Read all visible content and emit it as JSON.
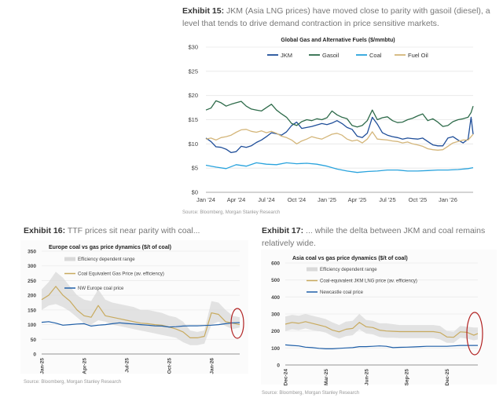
{
  "exhibits": {
    "e15": {
      "label": "Exhibit 15:",
      "text": " JKM (Asia LNG prices) have moved close to parity with gasoil (diesel), a level that tends to drive demand contraction in price sensitive markets.",
      "source": "Source: Bloomberg, Morgan Stanley Research"
    },
    "e16": {
      "label": "Exhibit 16:",
      "text": " TTF prices sit near parity with coal...",
      "source": "Source: Bloomberg, Morgan Stanley Research"
    },
    "e17": {
      "label": "Exhibit 17:",
      "text": " ... while the delta between JKM and coal remains relatively wide.",
      "source": "Source: Bloomberg, Morgan Stanley Research"
    }
  },
  "chart_data": [
    {
      "id": "exhibit15",
      "type": "line",
      "title": "Global Gas and Alternative Fuels ($/mmbtu)",
      "xlabel": "",
      "ylabel": "",
      "ylim": [
        0,
        30
      ],
      "yticks": [
        "$0",
        "$5",
        "$10",
        "$15",
        "$20",
        "$25",
        "$30"
      ],
      "ytick_values": [
        0,
        5,
        10,
        15,
        20,
        25,
        30
      ],
      "xticks": [
        "Jan '24",
        "Apr '24",
        "Jul '24",
        "Oct '24",
        "Jan '25",
        "Apr '25",
        "Jul '25",
        "Oct '25",
        "Jan '26"
      ],
      "x_unit": "months since Jan 2024",
      "xlim": [
        0,
        26.5
      ],
      "grid": true,
      "legend_position": "top-center",
      "series": [
        {
          "name": "JKM",
          "color": "#1f4e99",
          "x": [
            0,
            0.5,
            1,
            1.5,
            2,
            2.5,
            3,
            3.5,
            4,
            4.5,
            5,
            5.5,
            6,
            6.5,
            7,
            7.5,
            8,
            8.5,
            9,
            9.5,
            10,
            10.5,
            11,
            11.5,
            12,
            12.5,
            13,
            13.5,
            14,
            14.5,
            15,
            15.5,
            16,
            16.5,
            17,
            17.5,
            18,
            18.5,
            19,
            19.5,
            20,
            20.5,
            21,
            21.5,
            22,
            22.5,
            23,
            23.5,
            24,
            24.5,
            25,
            25.5,
            26,
            26.3,
            26.5
          ],
          "values": [
            11.2,
            10.5,
            9.4,
            9.3,
            8.9,
            8.2,
            8.4,
            9.5,
            9.3,
            9.6,
            10.3,
            10.8,
            11.5,
            12.3,
            12.1,
            11.8,
            12.5,
            13.8,
            14.5,
            13.2,
            13.4,
            13.6,
            13.9,
            14.2,
            14.0,
            14.3,
            14.8,
            14.2,
            13.4,
            13.0,
            11.6,
            11.3,
            12.2,
            15.5,
            14.1,
            12.3,
            11.8,
            11.5,
            11.3,
            11.0,
            11.2,
            11.1,
            11.0,
            11.2,
            10.5,
            9.8,
            9.6,
            9.6,
            11.2,
            11.5,
            10.8,
            10.2,
            11.0,
            15.5,
            12.0
          ]
        },
        {
          "name": "Gasoil",
          "color": "#2e6b4a",
          "x": [
            0,
            0.5,
            1,
            1.5,
            2,
            2.5,
            3,
            3.5,
            4,
            4.5,
            5,
            5.5,
            6,
            6.5,
            7,
            7.5,
            8,
            8.5,
            9,
            9.5,
            10,
            10.5,
            11,
            11.5,
            12,
            12.5,
            13,
            13.5,
            14,
            14.5,
            15,
            15.5,
            16,
            16.5,
            17,
            17.5,
            18,
            18.5,
            19,
            19.5,
            20,
            20.5,
            21,
            21.5,
            22,
            22.5,
            23,
            23.5,
            24,
            24.5,
            25,
            25.5,
            26,
            26.3,
            26.5
          ],
          "values": [
            17.0,
            17.4,
            18.9,
            18.5,
            17.8,
            18.2,
            18.5,
            18.8,
            17.8,
            17.2,
            17.0,
            16.8,
            17.5,
            18.2,
            17.0,
            16.2,
            15.5,
            14.2,
            13.8,
            14.6,
            15.0,
            14.8,
            15.2,
            15.0,
            15.4,
            16.8,
            16.0,
            15.5,
            15.2,
            13.8,
            13.5,
            13.8,
            14.8,
            17.0,
            15.0,
            15.4,
            15.6,
            14.8,
            14.4,
            14.5,
            15.0,
            15.3,
            15.8,
            16.2,
            14.8,
            15.2,
            14.5,
            13.6,
            13.8,
            14.6,
            15.0,
            15.2,
            15.5,
            16.5,
            17.8
          ]
        },
        {
          "name": "Coal",
          "color": "#29a3dd",
          "x": [
            0,
            1,
            2,
            3,
            4,
            5,
            6,
            7,
            8,
            9,
            10,
            11,
            12,
            13,
            14,
            15,
            16,
            17,
            18,
            19,
            20,
            21,
            22,
            23,
            24,
            25,
            26,
            26.5
          ],
          "values": [
            5.6,
            5.2,
            4.9,
            5.7,
            5.4,
            6.1,
            5.8,
            5.7,
            6.1,
            5.9,
            6.0,
            5.8,
            5.4,
            4.8,
            4.4,
            4.1,
            4.3,
            4.4,
            4.6,
            4.6,
            4.4,
            4.4,
            4.5,
            4.6,
            4.6,
            4.7,
            4.9,
            5.1
          ]
        },
        {
          "name": "Fuel Oil",
          "color": "#d4b67a",
          "x": [
            0,
            0.5,
            1,
            1.5,
            2,
            2.5,
            3,
            3.5,
            4,
            4.5,
            5,
            5.5,
            6,
            6.5,
            7,
            7.5,
            8,
            8.5,
            9,
            9.5,
            10,
            10.5,
            11,
            11.5,
            12,
            12.5,
            13,
            13.5,
            14,
            14.5,
            15,
            15.5,
            16,
            16.5,
            17,
            17.5,
            18,
            18.5,
            19,
            19.5,
            20,
            20.5,
            21,
            21.5,
            22,
            22.5,
            23,
            23.5,
            24,
            24.5,
            25,
            25.5,
            26,
            26.3,
            26.5
          ],
          "values": [
            11.0,
            11.2,
            10.8,
            11.3,
            11.5,
            11.8,
            12.4,
            12.9,
            13.0,
            12.6,
            12.4,
            12.7,
            12.3,
            12.6,
            12.2,
            11.6,
            11.3,
            10.8,
            10.0,
            10.6,
            11.0,
            11.5,
            11.2,
            11.0,
            11.5,
            12.0,
            12.2,
            11.8,
            11.0,
            10.6,
            10.8,
            10.2,
            11.0,
            12.5,
            11.0,
            10.9,
            10.8,
            10.6,
            10.5,
            10.2,
            10.4,
            10.0,
            9.8,
            9.5,
            9.0,
            8.8,
            8.7,
            8.8,
            9.5,
            10.2,
            10.5,
            10.8,
            10.8,
            11.5,
            12.0
          ]
        }
      ]
    },
    {
      "id": "exhibit16",
      "type": "line",
      "title": "Europe coal vs gas price dynamics ($/t of coal)",
      "xlabel": "",
      "ylabel": "",
      "ylim": [
        0,
        350
      ],
      "yticks": [
        "0",
        "50",
        "100",
        "150",
        "200",
        "250",
        "300",
        "350"
      ],
      "ytick_values": [
        0,
        50,
        100,
        150,
        200,
        250,
        300,
        350
      ],
      "xticks": [
        "Jan-25",
        "Apr-25",
        "Jul-25",
        "Oct-25",
        "Jan-26"
      ],
      "x_unit": "months since Jan 2025",
      "xlim": [
        0,
        14
      ],
      "grid": true,
      "legend_position": "top-left",
      "annotation": "red ellipse highlighting latest values",
      "series": [
        {
          "name": "Efficiency dependent range",
          "color": "#d9d9d9",
          "kind": "band",
          "x": [
            0,
            0.5,
            1,
            1.5,
            2,
            2.5,
            3,
            3.5,
            4,
            4.5,
            5,
            5.5,
            6,
            6.5,
            7,
            7.5,
            8,
            8.5,
            9,
            9.5,
            10,
            10.5,
            11,
            11.5,
            12,
            12.5,
            13,
            13.5,
            14
          ],
          "upper": [
            220,
            245,
            280,
            260,
            230,
            200,
            185,
            180,
            220,
            185,
            175,
            170,
            165,
            160,
            150,
            150,
            145,
            140,
            130,
            125,
            110,
            80,
            75,
            80,
            180,
            175,
            150,
            130,
            125
          ],
          "lower": [
            150,
            165,
            170,
            160,
            145,
            125,
            105,
            100,
            115,
            110,
            100,
            95,
            90,
            85,
            80,
            75,
            70,
            65,
            60,
            55,
            40,
            30,
            30,
            35,
            100,
            110,
            95,
            85,
            90
          ]
        },
        {
          "name": "Coal Equivalent Gas Price (av. efficiency)",
          "color": "#c8aa5e",
          "x": [
            0,
            0.5,
            1,
            1.5,
            2,
            2.5,
            3,
            3.5,
            4,
            4.5,
            5,
            5.5,
            6,
            6.5,
            7,
            7.5,
            8,
            8.5,
            9,
            9.5,
            10,
            10.5,
            11,
            11.5,
            12,
            12.5,
            13,
            13.5,
            14
          ],
          "values": [
            185,
            200,
            230,
            200,
            180,
            150,
            130,
            125,
            165,
            130,
            125,
            120,
            115,
            110,
            105,
            103,
            100,
            98,
            92,
            85,
            75,
            55,
            55,
            60,
            140,
            135,
            110,
            105,
            100
          ]
        },
        {
          "name": "NW Europe coal price",
          "color": "#1f5fa8",
          "x": [
            0,
            0.5,
            1,
            1.5,
            2,
            2.5,
            3,
            3.5,
            4,
            4.5,
            5,
            5.5,
            6,
            6.5,
            7,
            7.5,
            8,
            8.5,
            9,
            9.5,
            10,
            10.5,
            11,
            11.5,
            12,
            12.5,
            13,
            13.5,
            14
          ],
          "values": [
            108,
            110,
            105,
            98,
            100,
            102,
            103,
            95,
            98,
            100,
            103,
            106,
            104,
            102,
            100,
            98,
            96,
            95,
            92,
            93,
            95,
            96,
            96,
            97,
            98,
            100,
            103,
            106,
            107
          ]
        }
      ]
    },
    {
      "id": "exhibit17",
      "type": "line",
      "title": "Asia coal vs gas price dynamics ($/t of coal)",
      "xlabel": "",
      "ylabel": "",
      "ylim": [
        0,
        600
      ],
      "yticks": [
        "0",
        "100",
        "200",
        "300",
        "400",
        "500",
        "600"
      ],
      "ytick_values": [
        0,
        100,
        200,
        300,
        400,
        500,
        600
      ],
      "xticks": [
        "Dec-24",
        "Mar-25",
        "Jun-25",
        "Sep-25",
        "Dec-25"
      ],
      "x_unit": "months since Dec 2024",
      "xlim": [
        0,
        14.3
      ],
      "grid": true,
      "legend_position": "top-left",
      "annotation": "red ellipse highlighting latest values",
      "series": [
        {
          "name": "Efficiency dependent range",
          "color": "#d9d9d9",
          "kind": "band",
          "x": [
            0,
            0.5,
            1,
            1.5,
            2,
            2.5,
            3,
            3.5,
            4,
            4.5,
            5,
            5.5,
            6,
            6.5,
            7,
            7.5,
            8,
            8.5,
            9,
            9.5,
            10,
            10.5,
            11,
            11.5,
            12,
            12.5,
            13,
            13.5,
            14,
            14.3
          ],
          "upper": [
            285,
            295,
            290,
            300,
            290,
            280,
            270,
            250,
            235,
            255,
            260,
            300,
            265,
            260,
            245,
            245,
            240,
            235,
            235,
            235,
            235,
            235,
            235,
            230,
            200,
            195,
            230,
            225,
            220,
            220
          ],
          "lower": [
            200,
            210,
            205,
            215,
            205,
            200,
            190,
            170,
            155,
            170,
            175,
            210,
            185,
            180,
            165,
            160,
            160,
            158,
            158,
            158,
            158,
            158,
            158,
            150,
            130,
            130,
            160,
            155,
            145,
            150
          ]
        },
        {
          "name": "Coal-equivalent JKM LNG price (av. efficiency)",
          "color": "#c8aa5e",
          "x": [
            0,
            0.5,
            1,
            1.5,
            2,
            2.5,
            3,
            3.5,
            4,
            4.5,
            5,
            5.5,
            6,
            6.5,
            7,
            7.5,
            8,
            8.5,
            9,
            9.5,
            10,
            10.5,
            11,
            11.5,
            12,
            12.5,
            13,
            13.5,
            14,
            14.3
          ],
          "values": [
            240,
            250,
            245,
            255,
            245,
            235,
            225,
            205,
            195,
            210,
            215,
            250,
            225,
            220,
            205,
            200,
            198,
            196,
            196,
            196,
            196,
            196,
            196,
            190,
            165,
            163,
            195,
            192,
            175,
            185
          ]
        },
        {
          "name": "Newcastle coal price",
          "color": "#1f5fa8",
          "x": [
            0,
            0.5,
            1,
            1.5,
            2,
            2.5,
            3,
            3.5,
            4,
            4.5,
            5,
            5.5,
            6,
            6.5,
            7,
            7.5,
            8,
            8.5,
            9,
            9.5,
            10,
            10.5,
            11,
            11.5,
            12,
            12.5,
            13,
            13.5,
            14,
            14.3
          ],
          "values": [
            118,
            115,
            112,
            105,
            102,
            98,
            95,
            95,
            98,
            100,
            102,
            108,
            108,
            110,
            112,
            110,
            102,
            104,
            105,
            106,
            108,
            110,
            110,
            110,
            110,
            112,
            115,
            115,
            115,
            115
          ]
        }
      ]
    }
  ]
}
